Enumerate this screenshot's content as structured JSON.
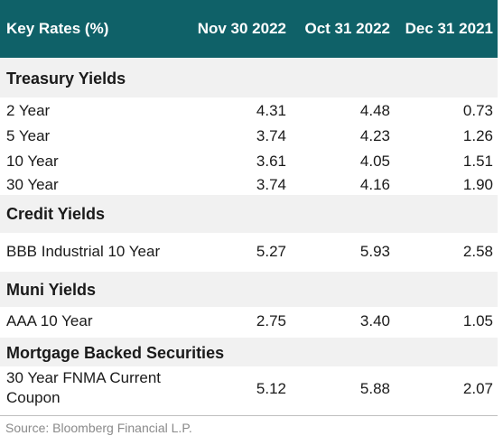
{
  "header": {
    "title": "Key Rates (%)",
    "col1": "Nov 30 2022",
    "col2": "Oct 31 2022",
    "col3": "Dec 31 2021"
  },
  "sections": [
    {
      "title": "Treasury Yields",
      "rows": [
        {
          "label": "2 Year",
          "v1": "4.31",
          "v2": "4.48",
          "v3": "0.73"
        },
        {
          "label": "5 Year",
          "v1": "3.74",
          "v2": "4.23",
          "v3": "1.26"
        },
        {
          "label": "10 Year",
          "v1": "3.61",
          "v2": "4.05",
          "v3": "1.51"
        },
        {
          "label": "30 Year",
          "v1": "3.74",
          "v2": "4.16",
          "v3": "1.90"
        }
      ]
    },
    {
      "title": "Credit Yields",
      "rows": [
        {
          "label": "BBB Industrial 10 Year",
          "v1": "5.27",
          "v2": "5.93",
          "v3": "2.58"
        }
      ]
    },
    {
      "title": "Muni Yields",
      "rows": [
        {
          "label": "AAA 10 Year",
          "v1": "2.75",
          "v2": "3.40",
          "v3": "1.05"
        }
      ]
    },
    {
      "title": "Mortgage Backed Securities",
      "rows": [
        {
          "label_line1": "30 Year FNMA Current",
          "label_line2": "Coupon",
          "v1": "5.12",
          "v2": "5.88",
          "v3": "2.07"
        }
      ]
    }
  ],
  "footer": {
    "source": "Source: Bloomberg Financial L.P."
  }
}
